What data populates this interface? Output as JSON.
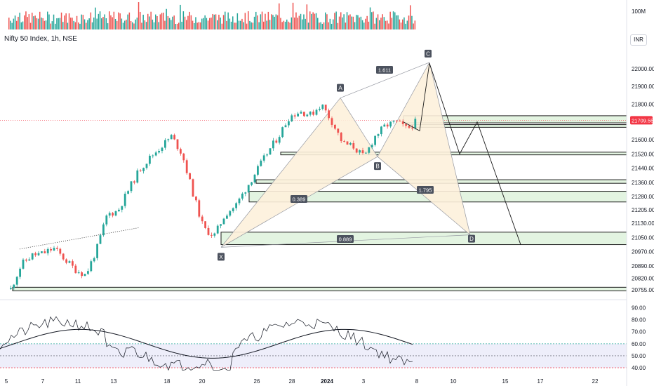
{
  "symbol_title": "Nifty 50 Index, 1h, NSE",
  "currency": "INR",
  "volume_label": "100M",
  "last_price": "21709.55",
  "colors": {
    "up": "#26a69a",
    "down": "#ef5350",
    "vol_up": "#26a69a",
    "vol_down": "#ef5350",
    "pattern_fill": "#fdf1dc",
    "pattern_line": "#9598a1",
    "zone_fill": "#e3f4e1",
    "zone_border": "#1b1b1b",
    "rsi": "#131722",
    "rsi_ma": "#131722",
    "rsi_band": "#eeeefa",
    "last_price": "#f23645"
  },
  "price_axis": {
    "min": 20720,
    "max": 22090,
    "ticks": [
      "22000.00",
      "21900.00",
      "21800.00",
      "21709.55",
      "21600.00",
      "21520.00",
      "21440.00",
      "21360.00",
      "21280.00",
      "21205.00",
      "21130.00",
      "21050.00",
      "20970.00",
      "20890.00",
      "20820.00",
      "20755.00"
    ]
  },
  "rsi_axis": {
    "ticks": [
      "90.00",
      "80.00",
      "70.00",
      "60.00",
      "50.00",
      "40.00"
    ],
    "levels": [
      60,
      50,
      40
    ]
  },
  "time_axis": [
    "5",
    "7",
    "11",
    "13",
    "18",
    "20",
    "26",
    "28",
    "2024",
    "3",
    "8",
    "10",
    "15",
    "17",
    "22"
  ],
  "harmonic": {
    "points": [
      {
        "label": "X",
        "price": 20995
      },
      {
        "label": "A",
        "price": 21835
      },
      {
        "label": "B",
        "price": 21505
      },
      {
        "label": "C",
        "price": 22035
      },
      {
        "label": "D",
        "price": 21065
      }
    ],
    "ratios": [
      "1.611",
      "0.389",
      "1.795",
      "0.889"
    ]
  },
  "zones": [
    {
      "top": 21735,
      "bottom": 21695
    },
    {
      "top": 21685,
      "bottom": 21670
    },
    {
      "top": 21530,
      "bottom": 21515
    },
    {
      "top": 21375,
      "bottom": 21355
    },
    {
      "top": 21310,
      "bottom": 21250
    },
    {
      "top": 21080,
      "bottom": 21010
    },
    {
      "top": 20770,
      "bottom": 20750
    }
  ],
  "chart_data": {
    "type": "candlestick",
    "title": "Nifty 50 Index, 1h, NSE",
    "series": [
      {
        "name": "Nifty 50 Index",
        "approx_close_path": [
          20760,
          20900,
          20950,
          20960,
          20990,
          20930,
          20870,
          20840,
          20980,
          21180,
          21200,
          21320,
          21430,
          21500,
          21560,
          21620,
          21520,
          21300,
          21100,
          21060,
          21180,
          21230,
          21330,
          21430,
          21530,
          21620,
          21730,
          21760,
          21740,
          21800,
          21700,
          21580,
          21560,
          21500,
          21620,
          21680,
          21700,
          21660,
          21710
        ]
      }
    ],
    "last_value": 21709.55,
    "ylim": [
      20720,
      22090
    ]
  }
}
